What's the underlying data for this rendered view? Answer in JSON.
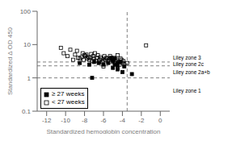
{
  "chart_data": {
    "type": "scatter",
    "title": "",
    "xlabel": "Standardized hemoglobin concentration",
    "ylabel": "Standardized Δ OD 450",
    "xlim": [
      -13,
      1
    ],
    "ylim": [
      0.1,
      100
    ],
    "xticks": [
      -12,
      -10,
      -8,
      -6,
      -4,
      -2,
      0
    ],
    "yticks": [
      0.1,
      1,
      10,
      100
    ],
    "log": "y",
    "grid": false,
    "legend": "lower left",
    "series": [
      {
        "name": "< 27 weeks",
        "color": "black",
        "marker": "open_square",
        "x": [
          -10.5,
          -10.2,
          -9.8,
          -9.5,
          -9.2,
          -9.0,
          -8.8,
          -8.7,
          -8.5,
          -8.3,
          -8.2,
          -8.1,
          -8.0,
          -7.9,
          -7.8,
          -7.7,
          -7.6,
          -7.5,
          -7.4,
          -7.3,
          -7.2,
          -7.1,
          -7.0,
          -6.9,
          -6.8,
          -6.7,
          -6.6,
          -6.5,
          -6.4,
          -6.3,
          -6.2,
          -6.1,
          -6.0,
          -5.9,
          -5.8,
          -5.7,
          -5.6,
          -5.5,
          -5.4,
          -5.3,
          -5.2,
          -5.1,
          -5.0,
          -4.9,
          -4.8,
          -4.7,
          -4.6,
          -4.5,
          -4.4,
          -4.3,
          -4.2,
          -4.1,
          -4.0,
          -3.9,
          -6.0,
          -1.5,
          -3.8,
          -3.5
        ],
        "values": [
          8.0,
          5.5,
          4.5,
          7.0,
          3.5,
          5.0,
          6.5,
          4.0,
          3.8,
          4.2,
          5.5,
          3.5,
          4.8,
          4.5,
          5.0,
          3.8,
          4.2,
          3.5,
          4.0,
          5.2,
          3.2,
          4.5,
          3.8,
          5.5,
          3.3,
          4.0,
          4.8,
          3.0,
          3.5,
          4.2,
          3.8,
          3.0,
          3.3,
          4.5,
          3.5,
          4.0,
          3.8,
          3.2,
          3.5,
          4.5,
          3.0,
          3.8,
          3.5,
          4.0,
          2.8,
          3.2,
          3.5,
          4.8,
          3.0,
          2.5,
          3.8,
          3.5,
          2.8,
          3.2,
          2.2,
          9.5,
          2.5,
          2.8
        ]
      },
      {
        "name": "≥ 27 weeks",
        "color": "black",
        "marker": "square",
        "x": [
          -8.5,
          -7.5,
          -7.0,
          -6.5,
          -6.0,
          -5.5,
          -5.0,
          -4.8,
          -4.5,
          -5.0,
          -4.5,
          -4.2,
          -3.8,
          -7.2,
          -4.0,
          -3.0,
          -4.5,
          -4.8,
          -5.2
        ],
        "values": [
          2.8,
          2.5,
          3.0,
          2.8,
          2.5,
          2.8,
          3.2,
          2.5,
          2.8,
          2.0,
          2.3,
          3.0,
          2.2,
          1.0,
          1.5,
          1.3,
          1.8,
          3.8,
          4.0
        ]
      }
    ],
    "reference_lines": [
      {
        "axis": "y",
        "value": 3.0
      },
      {
        "axis": "y",
        "value": 2.3
      },
      {
        "axis": "y",
        "value": 1.0
      },
      {
        "axis": "x",
        "value": -3.5
      }
    ],
    "annotations": [
      {
        "text": "Liley zone 3",
        "y": 4.0
      },
      {
        "text": "Liley zone 2c",
        "y": 2.6
      },
      {
        "text": "Liley zone 2a+b",
        "y": 1.5
      },
      {
        "text": "Liley zone 1",
        "y": 0.4
      }
    ]
  }
}
